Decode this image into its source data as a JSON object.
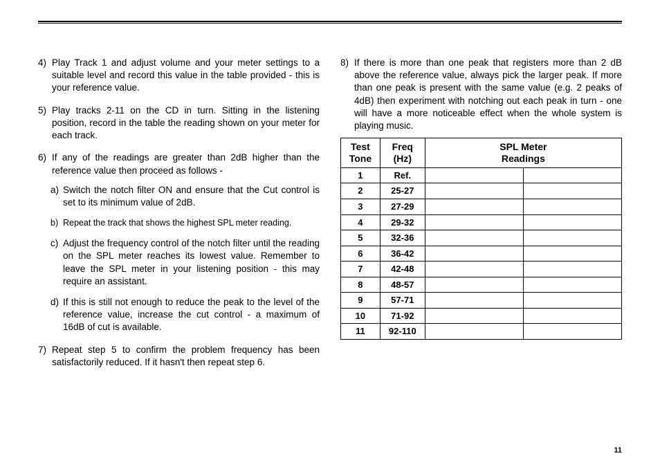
{
  "left": {
    "i4": {
      "n": "4)",
      "t": "Play Track 1 and adjust volume and your meter settings to a suitable level and record this value in the table provided - this is your reference value."
    },
    "i5": {
      "n": "5)",
      "t": "Play tracks 2-11 on the CD in turn. Sitting in the listening position, record in the table the reading shown on your meter for each track."
    },
    "i6": {
      "n": "6)",
      "t": "If any of the readings are greater than 2dB higher than the reference value then proceed as follows -"
    },
    "s6a": {
      "n": "a)",
      "t": "Switch the notch filter ON and ensure that the Cut control is set to its minimum value of 2dB."
    },
    "s6b": {
      "n": "b)",
      "t": "Repeat the track that shows the highest SPL meter reading."
    },
    "s6c": {
      "n": "c)",
      "t": "Adjust the frequency control of the notch filter until the reading on the SPL meter reaches its lowest value. Remember to leave the SPL meter in your listening position - this may require an assistant."
    },
    "s6d": {
      "n": "d)",
      "t": "If this is still not enough to reduce the peak to the level of the reference value, increase the cut control - a maximum of 16dB of cut is available."
    },
    "i7": {
      "n": "7)",
      "t": "Repeat step 5 to confirm the problem frequency has been satisfactorily reduced. If it hasn't then repeat step 6."
    }
  },
  "right": {
    "i8": {
      "n": "8)",
      "t": "If there is more than one peak that registers more than 2 dB above the reference value, always pick the larger peak. If more than one peak is present with the same value (e.g. 2 peaks of 4dB) then experiment with notching out each peak in turn - one will have a more noticeable effect when the whole system is playing music."
    }
  },
  "table": {
    "headers": {
      "c1a": "Test",
      "c1b": "Tone",
      "c2a": "Freq",
      "c2b": "(Hz)",
      "c3a": "SPL Meter",
      "c3b": "Readings"
    },
    "rows": [
      {
        "tone": "1",
        "freq": "Ref.",
        "r1": "",
        "r2": ""
      },
      {
        "tone": "2",
        "freq": "25-27",
        "r1": "",
        "r2": ""
      },
      {
        "tone": "3",
        "freq": "27-29",
        "r1": "",
        "r2": ""
      },
      {
        "tone": "4",
        "freq": "29-32",
        "r1": "",
        "r2": ""
      },
      {
        "tone": "5",
        "freq": "32-36",
        "r1": "",
        "r2": ""
      },
      {
        "tone": "6",
        "freq": "36-42",
        "r1": "",
        "r2": ""
      },
      {
        "tone": "7",
        "freq": "42-48",
        "r1": "",
        "r2": ""
      },
      {
        "tone": "8",
        "freq": "48-57",
        "r1": "",
        "r2": ""
      },
      {
        "tone": "9",
        "freq": "57-71",
        "r1": "",
        "r2": ""
      },
      {
        "tone": "10",
        "freq": "71-92",
        "r1": "",
        "r2": ""
      },
      {
        "tone": "11",
        "freq": "92-110",
        "r1": "",
        "r2": ""
      }
    ]
  },
  "page_number": "11"
}
